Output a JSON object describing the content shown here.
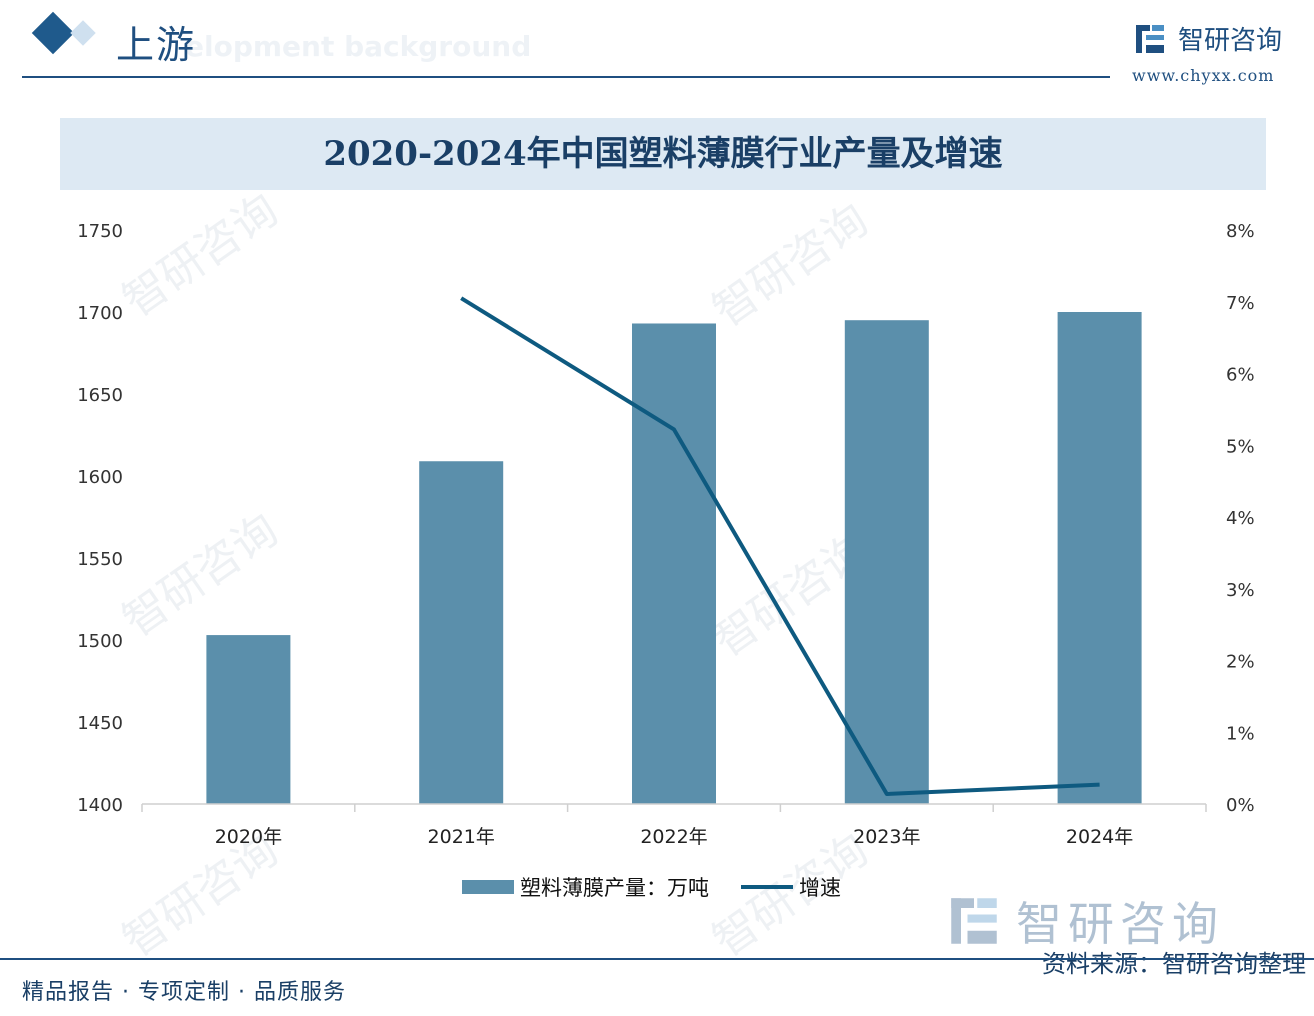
{
  "header": {
    "section_title": "上游",
    "background_text": "elopment background",
    "logo_name": "智研咨询",
    "logo_url": "www.chyxx.com"
  },
  "footer": {
    "tagline": "精品报告 · 专项定制 · 品质服务",
    "source": "资料来源：智研咨询整理",
    "logo_name": "智研咨询"
  },
  "watermark": "智研咨询",
  "colors": {
    "bar": "#5b8fab",
    "line": "#0e5a80",
    "accent": "#1f4f80",
    "title_band": "#dde9f3"
  },
  "chart_data": {
    "type": "bar",
    "title": "2020-2024年中国塑料薄膜行业产量及增速",
    "categories": [
      "2020年",
      "2021年",
      "2022年",
      "2023年",
      "2024年"
    ],
    "series": [
      {
        "name": "塑料薄膜产量：万吨",
        "type": "bar",
        "axis": "left",
        "values": [
          1503,
          1609,
          1693,
          1695,
          1700
        ]
      },
      {
        "name": "增速",
        "type": "line",
        "axis": "right",
        "values": [
          null,
          7.05,
          5.22,
          0.14,
          0.27
        ]
      }
    ],
    "y_left": {
      "min": 1400,
      "max": 1750,
      "ticks": [
        "1400",
        "1450",
        "1500",
        "1550",
        "1600",
        "1650",
        "1700",
        "1750"
      ]
    },
    "y_right": {
      "min": 0,
      "max": 8,
      "ticks": [
        "0%",
        "1%",
        "2%",
        "3%",
        "4%",
        "5%",
        "6%",
        "7%",
        "8%"
      ]
    },
    "grid": false,
    "legend": "bottom"
  }
}
